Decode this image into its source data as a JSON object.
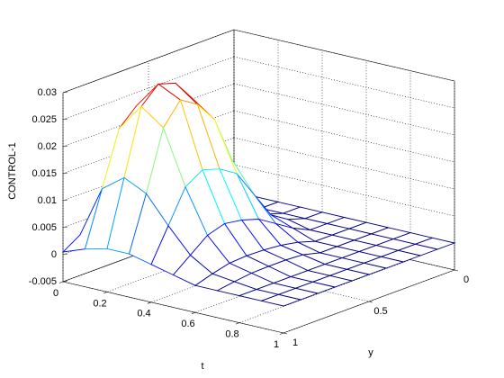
{
  "chart_data": {
    "type": "mesh",
    "xlabel": "t",
    "ylabel": "y",
    "zlabel": "CONTROL-1",
    "x": [
      0,
      0.1,
      0.2,
      0.3,
      0.4,
      0.5,
      0.6,
      0.7,
      0.8,
      0.9,
      1
    ],
    "y": [
      0,
      0.1,
      0.2,
      0.3,
      0.4,
      0.5,
      0.6,
      0.7,
      0.8,
      0.9,
      1
    ],
    "z": [
      [
        0,
        0,
        0,
        0.001,
        0.0025,
        0.004,
        0.0048,
        0.005,
        0.0045,
        0.0025,
        0.0005
      ],
      [
        0,
        0,
        0.001,
        0.005,
        0.0125,
        0.02,
        0.024,
        0.025,
        0.022,
        0.012,
        0.002
      ],
      [
        0,
        0,
        0.0015,
        0.006,
        0.015,
        0.025,
        0.029,
        0.03,
        0.027,
        0.015,
        0.003
      ],
      [
        0,
        0,
        0.001,
        0.005,
        0.0135,
        0.022,
        0.026,
        0.028,
        0.024,
        0.013,
        0.003
      ],
      [
        0,
        0,
        0.001,
        0.003,
        0.008,
        0.013,
        0.015,
        0.016,
        0.014,
        0.008,
        0.002
      ],
      [
        0,
        0,
        0,
        0.0015,
        0.0035,
        0.0055,
        0.0065,
        0.007,
        0.006,
        0.0035,
        0.001
      ],
      [
        0,
        0,
        0,
        0,
        0.001,
        0.0016,
        0.0019,
        0.002,
        0.0018,
        0.001,
        0
      ],
      [
        0,
        0,
        0,
        0,
        0,
        0.0008,
        0.001,
        0.001,
        0.0009,
        0.0005,
        0
      ],
      [
        0,
        0,
        0,
        0,
        0,
        0,
        0,
        0,
        0,
        0,
        0
      ],
      [
        0,
        0,
        0,
        0,
        0,
        0,
        0,
        0,
        0,
        0,
        0
      ],
      [
        0,
        0,
        0,
        0,
        0,
        0,
        0,
        0,
        0,
        0,
        0
      ]
    ],
    "xlim": [
      0,
      1
    ],
    "ylim": [
      0,
      1
    ],
    "zlim": [
      -0.005,
      0.03
    ],
    "xticks": [
      0,
      0.2,
      0.4,
      0.6,
      0.8,
      1
    ],
    "yticks": [
      0,
      0.5,
      1
    ],
    "zticks": [
      -0.005,
      0,
      0.005,
      0.01,
      0.015,
      0.02,
      0.025,
      0.03
    ],
    "colormap": "jet",
    "grid": true
  }
}
